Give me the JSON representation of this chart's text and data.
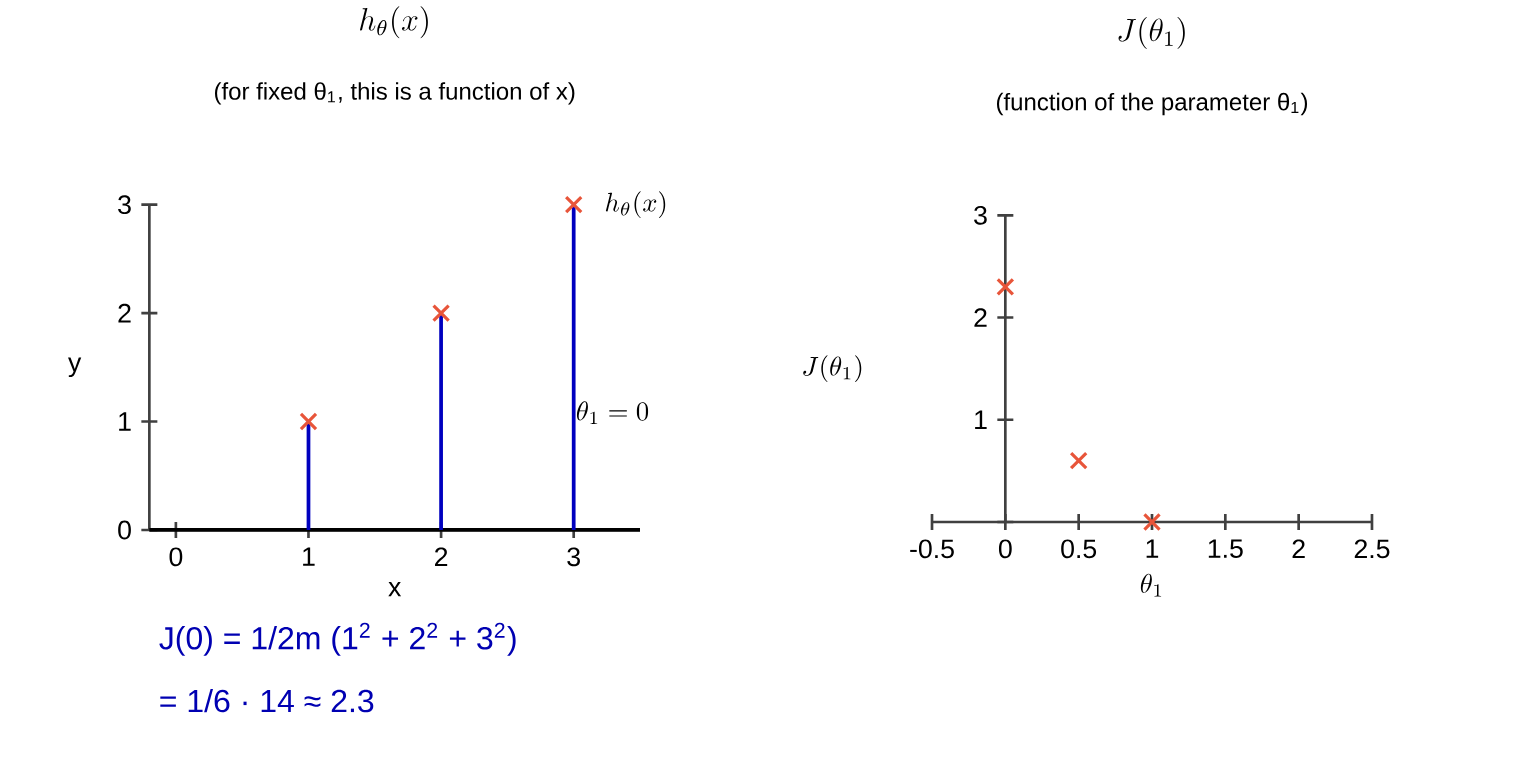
{
  "chart_data": [
    {
      "type": "scatter",
      "title": "h_\\theta(x)",
      "subtitle": "(for fixed θ$_{1}$, this is a function of x)",
      "xlabel": "x",
      "ylabel": "y",
      "xlim": [
        -0.2,
        3.5
      ],
      "ylim": [
        0,
        3
      ],
      "xticks": [
        0,
        1,
        2,
        3
      ],
      "yticks": [
        0,
        1,
        2,
        3
      ],
      "series": [
        {
          "type": "line",
          "color": "#000000",
          "x": [
            -0.2,
            3.5
          ],
          "values": [
            0,
            0
          ]
        },
        {
          "type": "scatter",
          "marker": "cross",
          "color": "#e8553a",
          "x": [
            1,
            2,
            3
          ],
          "values": [
            1,
            2,
            3
          ],
          "errors": [
            [
              0,
              1
            ],
            [
              0,
              2
            ],
            [
              0,
              3
            ]
          ]
        }
      ],
      "annotations": [
        {
          "text": "h_\\theta(x)",
          "x": 3,
          "y": 3
        },
        "\\theta_1 = 0",
        "J(0) = 1/2m (1$^{2}$ + 2$^{2}$ + 3$^{2}$)",
        "= 1/6 · 14 ≈ 2.3"
      ]
    },
    {
      "type": "scatter",
      "title": "J(\\theta_1)",
      "subtitle": "(function of the parameter θ$_{1}$)",
      "xlabel": "\\theta_1",
      "ylabel": "J(\\theta_1)",
      "xlim": [
        -0.5,
        2.5
      ],
      "ylim": [
        0,
        3
      ],
      "xticks": [
        -0.5,
        0,
        0.5,
        1,
        1.5,
        2,
        2.5
      ],
      "yticks": [
        {
          "value": 0,
          "label": null
        },
        1,
        2,
        3
      ],
      "marker": "cross",
      "color": "#e8553a",
      "x": [
        0,
        0.5,
        1
      ],
      "values": [
        2.3,
        0.6,
        0
      ]
    }
  ]
}
